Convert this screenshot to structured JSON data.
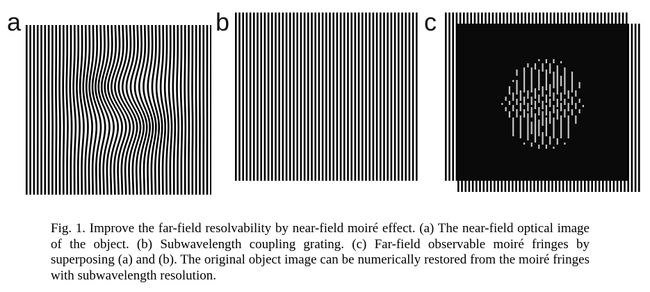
{
  "panels": {
    "a": {
      "label": "a"
    },
    "b": {
      "label": "b"
    },
    "c": {
      "label": "c"
    }
  },
  "caption": "Fig. 1. Improve the far-field resolvability by near-field moiré effect. (a) The near-field optical image of the object. (b) Subwavelength coupling grating. (c) Far-field observable moiré fringes by superposing (a) and (b). The original object image can be numerically restored from the moiré fringes with subwavelength resolution."
}
